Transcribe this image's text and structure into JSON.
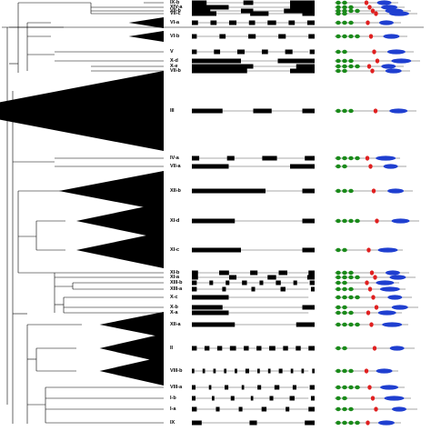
{
  "colors": {
    "tree": "#000000",
    "exon": "#000000",
    "intron": "#555555",
    "domain_green": "#1a8a1a",
    "domain_red": "#e02020",
    "domain_blue": "#1f3fd0",
    "protein_line": "#888888"
  },
  "clades": [
    {
      "label": "IX-b",
      "kind": "small"
    },
    {
      "label": "XIV-a",
      "kind": "small"
    },
    {
      "label": "VII-b",
      "kind": "small"
    },
    {
      "label": "VII-c",
      "kind": "small"
    },
    {
      "label": "VI-a",
      "kind": "triangle"
    },
    {
      "label": "VI-b",
      "kind": "triangle"
    },
    {
      "label": "V",
      "kind": "small"
    },
    {
      "label": "X-d",
      "kind": "small"
    },
    {
      "label": "X-e",
      "kind": "small"
    },
    {
      "label": "VII-b",
      "kind": "small"
    },
    {
      "label": "III",
      "kind": "triangle"
    },
    {
      "label": "IV-a",
      "kind": "small"
    },
    {
      "label": "VII-a",
      "kind": "small"
    },
    {
      "label": "XII-b",
      "kind": "triangle"
    },
    {
      "label": "XI-d",
      "kind": "triangle"
    },
    {
      "label": "XI-c",
      "kind": "triangle"
    },
    {
      "label": "XI-b",
      "kind": "small"
    },
    {
      "label": "XI-a",
      "kind": "small"
    },
    {
      "label": "XIII-b",
      "kind": "small"
    },
    {
      "label": "XIII-a",
      "kind": "small"
    },
    {
      "label": "X-c",
      "kind": "small"
    },
    {
      "label": "X-b",
      "kind": "small"
    },
    {
      "label": "X-a",
      "kind": "small"
    },
    {
      "label": "XII-a",
      "kind": "triangle"
    },
    {
      "label": "II",
      "kind": "triangle"
    },
    {
      "label": "VIII-b",
      "kind": "triangle"
    },
    {
      "label": "VIII-a",
      "kind": "small"
    },
    {
      "label": "I-b",
      "kind": "small"
    },
    {
      "label": "I-a",
      "kind": "small"
    },
    {
      "label": "IX",
      "kind": "small"
    }
  ]
}
